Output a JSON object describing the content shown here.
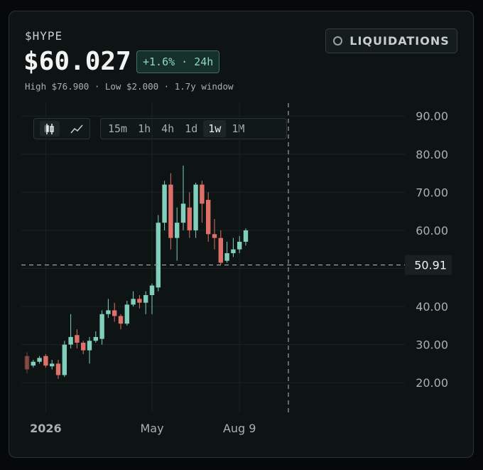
{
  "header": {
    "symbol": "$HYPE",
    "price": "$60.027",
    "change": "+1.6% · 24h",
    "stats": "High $76.900 · Low $2.000 · 1.7y window",
    "button": "LIQUIDATIONS",
    "timeframes": [
      {
        "label": "15m"
      },
      {
        "label": "1h"
      },
      {
        "label": "4h"
      },
      {
        "label": "1d"
      },
      {
        "label": "1w",
        "selected": true
      },
      {
        "label": "1M"
      }
    ]
  },
  "chart_data": {
    "type": "candlestick",
    "categories": [
      null,
      null,
      null,
      "2026",
      null,
      null,
      null,
      null,
      null,
      null,
      null,
      null,
      null,
      null,
      null,
      null,
      null,
      null,
      null,
      null,
      "May",
      null,
      null,
      null,
      null,
      null,
      null,
      null,
      null,
      null,
      null,
      null,
      null,
      null,
      "Aug 9",
      null
    ],
    "series": {
      "open": [
        27,
        24.5,
        25.5,
        27,
        24.3,
        25,
        22,
        30,
        32.5,
        30.5,
        28.5,
        31,
        31.5,
        38,
        39,
        37.5,
        35.5,
        40.5,
        42,
        41,
        43,
        45,
        62,
        72,
        58,
        62,
        66,
        60,
        72,
        68,
        59,
        58,
        52,
        54,
        55,
        57
      ],
      "high": [
        28,
        26,
        27,
        27.5,
        26,
        26,
        31,
        38,
        34,
        31,
        32,
        33.5,
        39,
        42,
        41,
        38,
        41.5,
        44,
        43,
        44,
        46,
        64,
        73,
        75,
        66,
        77,
        70,
        72.5,
        73,
        70,
        63,
        60,
        57,
        58,
        58.5,
        60.5
      ],
      "low": [
        22.5,
        24,
        25,
        24,
        23.5,
        21,
        21.5,
        29,
        29,
        27.5,
        25,
        30.5,
        30,
        37,
        36,
        34,
        35,
        40,
        39.5,
        38,
        38,
        44,
        60,
        55,
        52,
        60,
        58,
        58,
        62,
        57,
        55,
        51,
        51.5,
        53,
        54,
        56
      ],
      "close": [
        23.5,
        25.5,
        26.5,
        24.5,
        25,
        22,
        30,
        32,
        30.5,
        28.5,
        31,
        32,
        38,
        39,
        37.5,
        35.5,
        40.5,
        42,
        41,
        43,
        45.5,
        62,
        72,
        58,
        62,
        67,
        60,
        72,
        67,
        59,
        58,
        51.5,
        54,
        55,
        57,
        60
      ]
    },
    "up_color": "#7fcfbc",
    "down_color": "#df7069",
    "ylim": [
      12.2,
      93.4
    ],
    "yticks": [
      {
        "value": 20,
        "label": "20.00"
      },
      {
        "value": 30,
        "label": "30.00"
      },
      {
        "value": 40,
        "label": "40.00"
      },
      {
        "value": 50,
        "label": "50.00"
      },
      {
        "value": 60,
        "label": "60.00"
      },
      {
        "value": 70,
        "label": "70.00"
      },
      {
        "value": 80,
        "label": "80.00"
      },
      {
        "value": 90,
        "label": "90.00"
      }
    ],
    "grid": true,
    "crosshair": 50.91
  }
}
